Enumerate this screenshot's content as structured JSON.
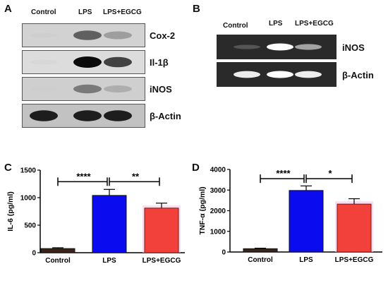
{
  "panel_a": {
    "letter": "A",
    "lanes": [
      "Control",
      "LPS",
      "LPS+EGCG"
    ],
    "bands": [
      {
        "label": "Cox-2",
        "intensities": [
          0.05,
          0.75,
          0.5
        ],
        "bg": "#d2d2d2"
      },
      {
        "label": "Il-1β",
        "intensities": [
          0.08,
          1.0,
          0.85
        ],
        "bg": "#dcdcdc"
      },
      {
        "label": "iNOS",
        "intensities": [
          0.03,
          0.65,
          0.4
        ],
        "bg": "#cfcfcf"
      },
      {
        "label": "β-Actin",
        "intensities": [
          0.95,
          0.95,
          0.95
        ],
        "bg": "#c2c2c2"
      }
    ]
  },
  "panel_b": {
    "letter": "B",
    "lanes": [
      "Control",
      "LPS",
      "LPS+EGCG"
    ],
    "bands": [
      {
        "label": "iNOS",
        "intensities": [
          0.35,
          1.0,
          0.7
        ]
      },
      {
        "label": "β-Actin",
        "intensities": [
          0.95,
          1.0,
          0.95
        ]
      }
    ]
  },
  "colors": {
    "control": "#3b2417",
    "lps": "#0b0bf0",
    "lps_egcg": "#f2403a",
    "lps_egcg_glow": "#f7c8ec"
  },
  "chart_data": [
    {
      "panel": "C",
      "type": "bar",
      "categories": [
        "Control",
        "LPS",
        "LPS+EGCG"
      ],
      "values": [
        75,
        1040,
        810
      ],
      "errors": [
        15,
        110,
        90
      ],
      "ylabel": "IL-6 (pg/ml)",
      "ylim": [
        0,
        1500
      ],
      "yticks": [
        0,
        500,
        1000,
        1500
      ],
      "significance": [
        {
          "from": 0,
          "to": 1,
          "label": "****",
          "y": 1290
        },
        {
          "from": 1,
          "to": 2,
          "label": "**",
          "y": 1290
        }
      ]
    },
    {
      "panel": "D",
      "type": "bar",
      "categories": [
        "Control",
        "LPS",
        "LPS+EGCG"
      ],
      "values": [
        160,
        2980,
        2320
      ],
      "errors": [
        25,
        220,
        260
      ],
      "ylabel": "TNF-α (pg/ml)",
      "ylim": [
        0,
        4000
      ],
      "yticks": [
        0,
        1000,
        2000,
        3000,
        4000
      ],
      "significance": [
        {
          "from": 0,
          "to": 1,
          "label": "****",
          "y": 3550
        },
        {
          "from": 1,
          "to": 2,
          "label": "*",
          "y": 3550
        }
      ]
    }
  ]
}
